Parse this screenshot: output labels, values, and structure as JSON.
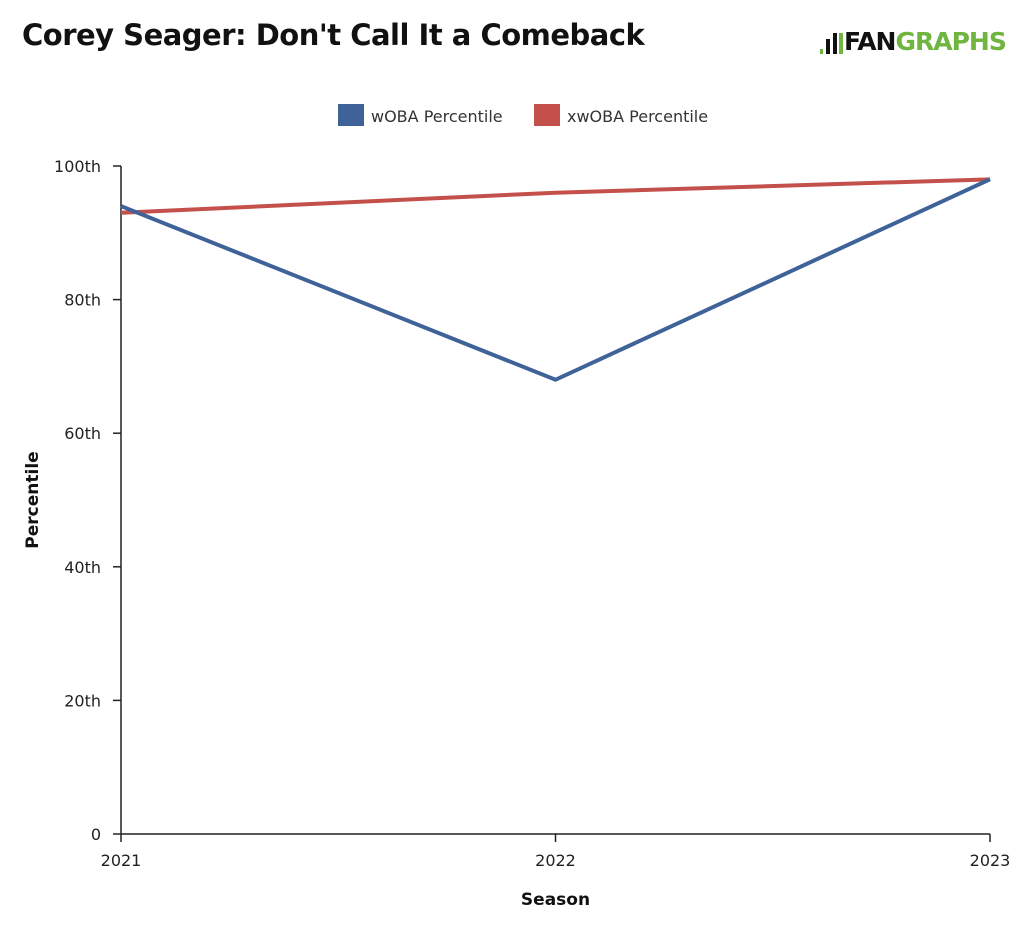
{
  "header": {
    "title": "Corey Seager: Don't Call It a Comeback",
    "logo_text": "FANGRAPHS"
  },
  "colors": {
    "wOBA": "#3f6399",
    "xwOBA": "#c4504b",
    "logo_green": "#6fb53f"
  },
  "chart_data": {
    "type": "line",
    "title": "Corey Seager: Don't Call It a Comeback",
    "xlabel": "Season",
    "ylabel": "Percentile",
    "x": [
      "2021",
      "2022",
      "2023"
    ],
    "ylim": [
      0,
      100
    ],
    "yticks": [
      0,
      20,
      40,
      60,
      80,
      100
    ],
    "ytick_labels": [
      "0",
      "20th",
      "40th",
      "60th",
      "80th",
      "100th"
    ],
    "grid": false,
    "legend": "top",
    "series": [
      {
        "name": "wOBA Percentile",
        "color": "#3f6399",
        "values": [
          94,
          68,
          98
        ]
      },
      {
        "name": "xwOBA Percentile",
        "color": "#c4504b",
        "values": [
          93,
          96,
          98
        ]
      }
    ]
  }
}
